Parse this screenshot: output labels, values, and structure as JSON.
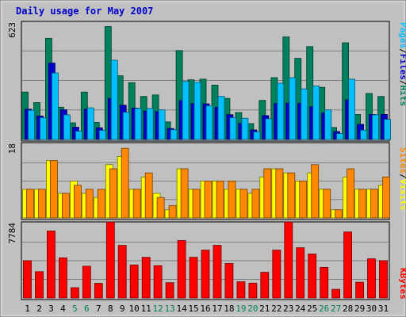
{
  "chart_data": {
    "type": "bar",
    "title": "Daily usage for May 2007",
    "categories": [
      "1",
      "2",
      "3",
      "4",
      "5",
      "6",
      "7",
      "8",
      "9",
      "10",
      "11",
      "12",
      "13",
      "14",
      "15",
      "16",
      "17",
      "18",
      "19",
      "20",
      "21",
      "22",
      "23",
      "24",
      "25",
      "26",
      "27",
      "28",
      "29",
      "30",
      "31"
    ],
    "weekend_days": [
      "5",
      "6",
      "12",
      "13",
      "19",
      "20",
      "26",
      "27"
    ],
    "panels": [
      {
        "id": "hits-files-pages",
        "axis_max_label": "623",
        "ylim": [
          0,
          623
        ],
        "legend": [
          {
            "text": "Pages",
            "color": "#00c0ff"
          },
          {
            "text": "/",
            "color": "#000000"
          },
          {
            "text": "Files",
            "color": "#0000cc"
          },
          {
            "text": "/",
            "color": "#000000"
          },
          {
            "text": "Hits",
            "color": "#00805c"
          }
        ],
        "series": [
          {
            "name": "Hits",
            "color": "#00805c",
            "values": [
              250,
              195,
              534,
              170,
              88,
              250,
              90,
              596,
              336,
              300,
              227,
              235,
              93,
              469,
              315,
              318,
              287,
              217,
              142,
              84,
              206,
              326,
              541,
              428,
              490,
              275,
              63,
              510,
              132,
              243,
              227
            ]
          },
          {
            "name": "Files",
            "color": "#0000cc",
            "values": [
              160,
              124,
              403,
              157,
              65,
              160,
              62,
              217,
              181,
              166,
              150,
              147,
              58,
              205,
              190,
              188,
              170,
              131,
              85,
              50,
              126,
              190,
              192,
              191,
              173,
              140,
              42,
              209,
              80,
              132,
              132
            ]
          },
          {
            "name": "Pages",
            "color": "#00c0ff",
            "values": [
              154,
              115,
              351,
              130,
              44,
              167,
              48,
              418,
              144,
              164,
              164,
              156,
              51,
              306,
              302,
              178,
              227,
              115,
              112,
              40,
              109,
              297,
              326,
              267,
              282,
              156,
              31,
              318,
              49,
              130,
              106
            ]
          }
        ]
      },
      {
        "id": "visits-sites",
        "axis_max_label": "18",
        "ylim": [
          0,
          18
        ],
        "legend": [
          {
            "text": "Sites",
            "color": "#ff8800"
          },
          {
            "text": "/",
            "color": "#000000"
          },
          {
            "text": "Visits",
            "color": "#ffff00"
          }
        ],
        "series": [
          {
            "name": "Visits",
            "color": "#ffff00",
            "values": [
              7,
              7,
              14,
              6,
              9,
              6,
              5,
              13,
              15,
              7,
              10,
              6,
              2,
              12,
              7,
              9,
              9,
              7,
              7,
              6,
              10,
              12,
              11,
              9,
              11,
              7,
              2,
              10,
              7,
              7,
              8
            ]
          },
          {
            "name": "Sites",
            "color": "#ff8800",
            "values": [
              7,
              7,
              14,
              6,
              8,
              7,
              7,
              12,
              17,
              7,
              11,
              5,
              3,
              12,
              7,
              9,
              9,
              9,
              7,
              7,
              12,
              12,
              11,
              9,
              13,
              7,
              2,
              12,
              7,
              7,
              10
            ]
          }
        ]
      },
      {
        "id": "kbytes",
        "axis_max_label": "7784",
        "ylim": [
          0,
          7784
        ],
        "legend": [
          {
            "text": "KBytes",
            "color": "#ff0000"
          }
        ],
        "series": [
          {
            "name": "KBytes",
            "color": "#ff0000",
            "values": [
              3900,
              2750,
              7000,
              4200,
              1080,
              3320,
              1530,
              8000,
              5500,
              3450,
              4250,
              3380,
              1600,
              6000,
              4250,
              5000,
              5500,
              3600,
              1700,
              1550,
              2680,
              5000,
              8000,
              5250,
              4600,
              3200,
              900,
              6900,
              1650,
              4100,
              3900
            ]
          }
        ]
      }
    ]
  }
}
